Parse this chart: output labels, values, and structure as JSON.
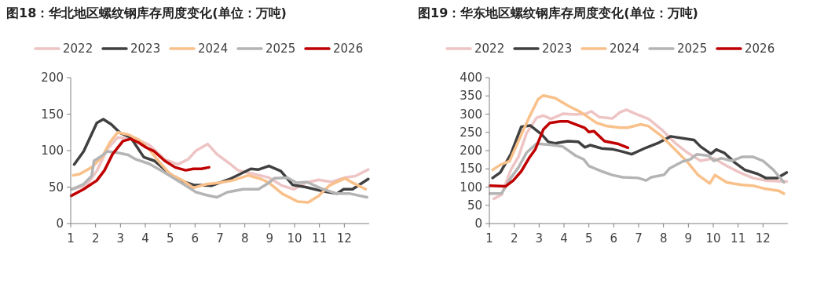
{
  "chart_data": [
    {
      "type": "line",
      "title": "图18：华北地区螺纹钢库存周度变化(单位：万吨)",
      "legend": "top",
      "marker": "none",
      "line_style": "solid",
      "grid": false,
      "xlim": [
        1,
        13
      ],
      "xticks": [
        1,
        2,
        3,
        4,
        5,
        6,
        7,
        8,
        9,
        10,
        11,
        12
      ],
      "ylim": [
        0,
        200
      ],
      "yticks": [
        0,
        50,
        100,
        150,
        200
      ],
      "series": [
        {
          "name": "2022",
          "color": "#eec4c4",
          "x": [
            1.05,
            1.63,
            2.05,
            2.47,
            2.89,
            3.62,
            4.15,
            4.78,
            5.3,
            5.72,
            6.04,
            6.51,
            6.88,
            7.4,
            7.72,
            8.35,
            8.97,
            9.5,
            9.97,
            10.44,
            10.97,
            11.49,
            12.02,
            12.44,
            12.96
          ],
          "values": [
            47,
            52,
            72,
            102,
            118,
            116,
            108,
            88,
            81,
            88,
            100,
            109,
            95,
            82,
            73,
            68,
            63,
            52,
            47,
            56,
            60,
            57,
            63,
            65,
            74
          ]
        },
        {
          "name": "2023",
          "color": "#404040",
          "x": [
            1.14,
            1.52,
            2.05,
            2.31,
            2.63,
            3.0,
            3.41,
            3.94,
            4.36,
            4.99,
            5.41,
            5.93,
            6.67,
            7.4,
            8.24,
            8.55,
            8.97,
            9.45,
            9.92,
            10.44,
            11.18,
            11.7,
            11.97,
            12.33,
            12.96
          ],
          "values": [
            81,
            99,
            138,
            143,
            136,
            124,
            118,
            91,
            86,
            68,
            59,
            53,
            52,
            61,
            75,
            74,
            79,
            72,
            53,
            50,
            44,
            41,
            47,
            47,
            61
          ]
        },
        {
          "name": "2024",
          "color": "#f9c08a",
          "x": [
            1.1,
            1.37,
            1.84,
            2.26,
            2.57,
            2.89,
            3.31,
            3.73,
            4.15,
            4.57,
            4.99,
            5.51,
            5.93,
            6.46,
            6.98,
            7.5,
            8.14,
            8.66,
            8.97,
            9.5,
            10.13,
            10.55,
            10.97,
            11.39,
            12.02,
            12.33,
            12.86
          ],
          "values": [
            66,
            68,
            77,
            91,
            111,
            125,
            122,
            115,
            102,
            84,
            68,
            59,
            49,
            54,
            56,
            59,
            66,
            61,
            56,
            41,
            30,
            29,
            38,
            52,
            62,
            56,
            47
          ]
        },
        {
          "name": "2025",
          "color": "#b4b4b4",
          "x": [
            1.05,
            1.52,
            1.84,
            1.94,
            2.26,
            2.47,
            2.89,
            3.31,
            3.62,
            4.15,
            4.67,
            5.2,
            5.62,
            6.04,
            6.46,
            6.88,
            7.3,
            7.93,
            8.55,
            8.97,
            9.18,
            9.71,
            10.08,
            10.5,
            11.07,
            11.7,
            12.23,
            12.91
          ],
          "values": [
            47,
            54,
            65,
            86,
            93,
            99,
            97,
            94,
            88,
            82,
            72,
            61,
            52,
            43,
            39,
            36,
            43,
            47,
            47,
            56,
            62,
            63,
            56,
            57,
            48,
            41,
            41,
            36
          ]
        },
        {
          "name": "2026",
          "color": "#c00000",
          "x": [
            1.02,
            1.52,
            2.05,
            2.36,
            2.68,
            3.1,
            3.41,
            3.73,
            4.04,
            4.36,
            4.78,
            5.2,
            5.62,
            5.93,
            6.25,
            6.56
          ],
          "values": [
            38,
            47,
            59,
            73,
            95,
            113,
            116,
            111,
            104,
            99,
            86,
            77,
            73,
            75,
            75,
            77
          ]
        }
      ]
    },
    {
      "type": "line",
      "title": "图19：华东地区螺纹钢库存周度变化(单位：万吨)",
      "legend": "top",
      "marker": "none",
      "line_style": "solid",
      "grid": false,
      "xlim": [
        1,
        13
      ],
      "xticks": [
        1,
        2,
        3,
        4,
        5,
        6,
        7,
        8,
        9,
        10,
        11,
        12
      ],
      "ylim": [
        0,
        400
      ],
      "yticks": [
        0,
        50,
        100,
        150,
        200,
        250,
        300,
        350,
        400
      ],
      "series": [
        {
          "name": "2022",
          "color": "#eec4c4",
          "x": [
            1.18,
            1.49,
            1.86,
            2.17,
            2.49,
            2.9,
            3.17,
            3.48,
            3.95,
            4.47,
            4.89,
            5.1,
            5.41,
            5.94,
            6.25,
            6.51,
            6.88,
            7.4,
            7.92,
            8.45,
            8.97,
            9.49,
            10.02,
            10.54,
            11.06,
            11.59,
            12.11,
            12.95
          ],
          "values": [
            68,
            79,
            147,
            183,
            247,
            290,
            296,
            287,
            301,
            299,
            301,
            308,
            292,
            288,
            305,
            312,
            301,
            287,
            258,
            222,
            194,
            172,
            179,
            158,
            140,
            125,
            118,
            115
          ]
        },
        {
          "name": "2023",
          "color": "#404040",
          "x": [
            1.13,
            1.44,
            1.86,
            2.28,
            2.64,
            3.11,
            3.37,
            3.64,
            4.16,
            4.58,
            4.84,
            5.05,
            5.52,
            5.94,
            6.36,
            6.72,
            7.3,
            7.82,
            8.29,
            8.87,
            9.23,
            9.49,
            9.91,
            10.12,
            10.44,
            10.85,
            11.27,
            11.79,
            12.11,
            12.58,
            12.95
          ],
          "values": [
            125,
            140,
            190,
            265,
            269,
            244,
            224,
            220,
            226,
            224,
            209,
            215,
            206,
            204,
            197,
            190,
            208,
            222,
            239,
            233,
            229,
            211,
            191,
            203,
            194,
            168,
            147,
            136,
            125,
            125,
            140
          ]
        },
        {
          "name": "2024",
          "color": "#f9c08a",
          "x": [
            1.13,
            1.44,
            1.81,
            2.17,
            2.59,
            2.96,
            3.17,
            3.64,
            4.16,
            4.68,
            5.31,
            5.73,
            6.25,
            6.56,
            7.09,
            7.4,
            7.92,
            8.45,
            8.97,
            9.39,
            9.86,
            10.07,
            10.54,
            10.85,
            11.17,
            11.59,
            12.11,
            12.63,
            12.84
          ],
          "values": [
            147,
            161,
            171,
            226,
            290,
            341,
            351,
            344,
            323,
            305,
            276,
            267,
            263,
            263,
            272,
            267,
            240,
            204,
            168,
            133,
            110,
            133,
            113,
            109,
            106,
            104,
            95,
            90,
            82
          ]
        },
        {
          "name": "2025",
          "color": "#b4b4b4",
          "x": [
            1.02,
            1.49,
            1.86,
            2.17,
            2.49,
            2.9,
            3.43,
            3.95,
            4.47,
            4.79,
            5.0,
            5.52,
            5.94,
            6.36,
            6.98,
            7.3,
            7.51,
            8.03,
            8.24,
            8.76,
            9.08,
            9.34,
            9.81,
            10.02,
            10.33,
            10.75,
            11.17,
            11.59,
            12.0,
            12.42,
            12.84
          ],
          "values": [
            82,
            82,
            125,
            154,
            194,
            219,
            216,
            211,
            186,
            176,
            158,
            143,
            133,
            127,
            125,
            118,
            127,
            134,
            151,
            170,
            176,
            190,
            186,
            172,
            179,
            172,
            183,
            183,
            172,
            147,
            113
          ]
        },
        {
          "name": "2026",
          "color": "#c00000",
          "x": [
            1.02,
            1.65,
            1.96,
            2.28,
            2.59,
            2.85,
            3.17,
            3.43,
            3.85,
            4.16,
            4.47,
            4.84,
            5.0,
            5.21,
            5.63,
            6.15,
            6.57
          ],
          "values": [
            104,
            102,
            118,
            143,
            179,
            204,
            258,
            276,
            280,
            280,
            272,
            262,
            251,
            253,
            226,
            219,
            208
          ]
        }
      ]
    }
  ]
}
